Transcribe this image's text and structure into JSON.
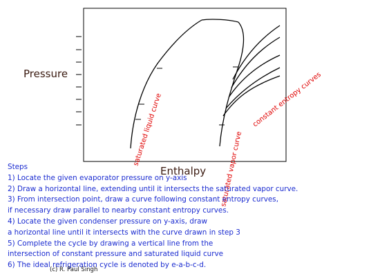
{
  "axes": {
    "y_label": "Pressure",
    "x_label": "Enthalpy"
  },
  "curves": {
    "saturated_liquid": "saturated liquid curve",
    "saturated_vapor": "saturated vapor curve",
    "constant_entropy": "constant entropy curves"
  },
  "steps": {
    "title": "Steps",
    "lines": [
      "1) Locate the given evaporator pressure on y-axis",
      "2) Draw a horizontal line, extending until it intersects the saturated vapor curve.",
      "3) From intersection point, draw a curve following constant entropy curves,",
      "if necessary draw parallel to nearby constant entropy curves.",
      "4) Locate the given condenser pressure on y-axis, draw",
      "a horizontal line until it intersects with the curve drawn in step 3",
      "5) Complete the cycle by drawing a vertical line from the",
      "intersection of constant pressure and saturated liquid curve",
      "6) The ideal refrigeration cycle is denoted by e-a-b-c-d."
    ]
  },
  "copyright": "(c) R. Paul Singh"
}
